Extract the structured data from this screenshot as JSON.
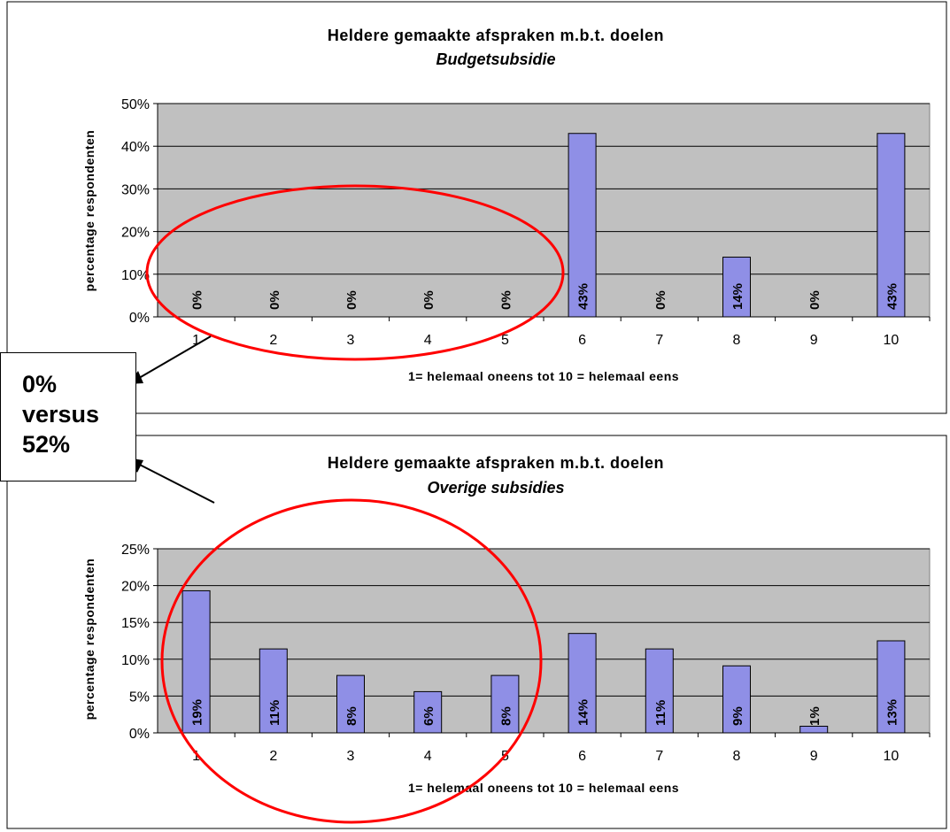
{
  "chart_data": [
    {
      "type": "bar",
      "title": "Heldere gemaakte afspraken m.b.t. doelen",
      "subtitle": "Budgetsubsidie",
      "xlabel": "1= helemaal oneens tot 10 = helemaal eens",
      "ylabel": "percentage respondenten",
      "categories": [
        "1",
        "2",
        "3",
        "4",
        "5",
        "6",
        "7",
        "8",
        "9",
        "10"
      ],
      "values": [
        0,
        0,
        0,
        0,
        0,
        43,
        0,
        14,
        0,
        43
      ],
      "value_labels": [
        "0%",
        "0%",
        "0%",
        "0%",
        "0%",
        "43%",
        "0%",
        "14%",
        "0%",
        "43%"
      ],
      "ylim": [
        0,
        50
      ],
      "yticks": [
        0,
        10,
        20,
        30,
        40,
        50
      ],
      "ytick_labels": [
        "0%",
        "10%",
        "20%",
        "30%",
        "40%",
        "50%"
      ],
      "grid": true,
      "legend": "none",
      "bar_color": "#8f8fe6",
      "plot_background": "#c0c0c0"
    },
    {
      "type": "bar",
      "title": "Heldere gemaakte afspraken m.b.t. doelen",
      "subtitle": "Overige subsidies",
      "xlabel": "1= helemaal oneens tot 10 = helemaal eens",
      "ylabel": "percentage respondenten",
      "categories": [
        "1",
        "2",
        "3",
        "4",
        "5",
        "6",
        "7",
        "8",
        "9",
        "10"
      ],
      "values": [
        19.3,
        11.4,
        7.8,
        5.6,
        7.8,
        13.5,
        11.4,
        9.1,
        0.9,
        12.5
      ],
      "value_labels": [
        "19%",
        "11%",
        "8%",
        "6%",
        "8%",
        "14%",
        "11%",
        "9%",
        "1%",
        "13%"
      ],
      "ylim": [
        0,
        25
      ],
      "yticks": [
        0,
        5,
        10,
        15,
        20,
        25
      ],
      "ytick_labels": [
        "0%",
        "5%",
        "10%",
        "15%",
        "20%",
        "25%"
      ],
      "grid": true,
      "legend": "none",
      "bar_color": "#8f8fe6",
      "plot_background": "#c0c0c0"
    }
  ],
  "annotation": {
    "line1": "0%",
    "line2": "versus",
    "line3": "52%"
  },
  "highlight_color": "#ff0000"
}
